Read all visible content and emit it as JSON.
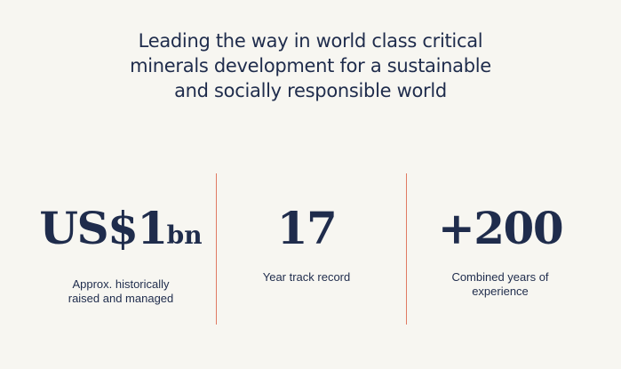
{
  "headline": {
    "lines": [
      "Leading the way in world class critical",
      "minerals development for a sustainable",
      "and socially responsible world"
    ]
  },
  "stats": [
    {
      "value": "US$1",
      "unit": "bn",
      "label": [
        "Approx. historically",
        "raised and managed"
      ]
    },
    {
      "value": "17",
      "label": [
        "Year track record"
      ]
    },
    {
      "value": "+200",
      "label": [
        "Combined years of",
        "experience"
      ]
    }
  ]
}
